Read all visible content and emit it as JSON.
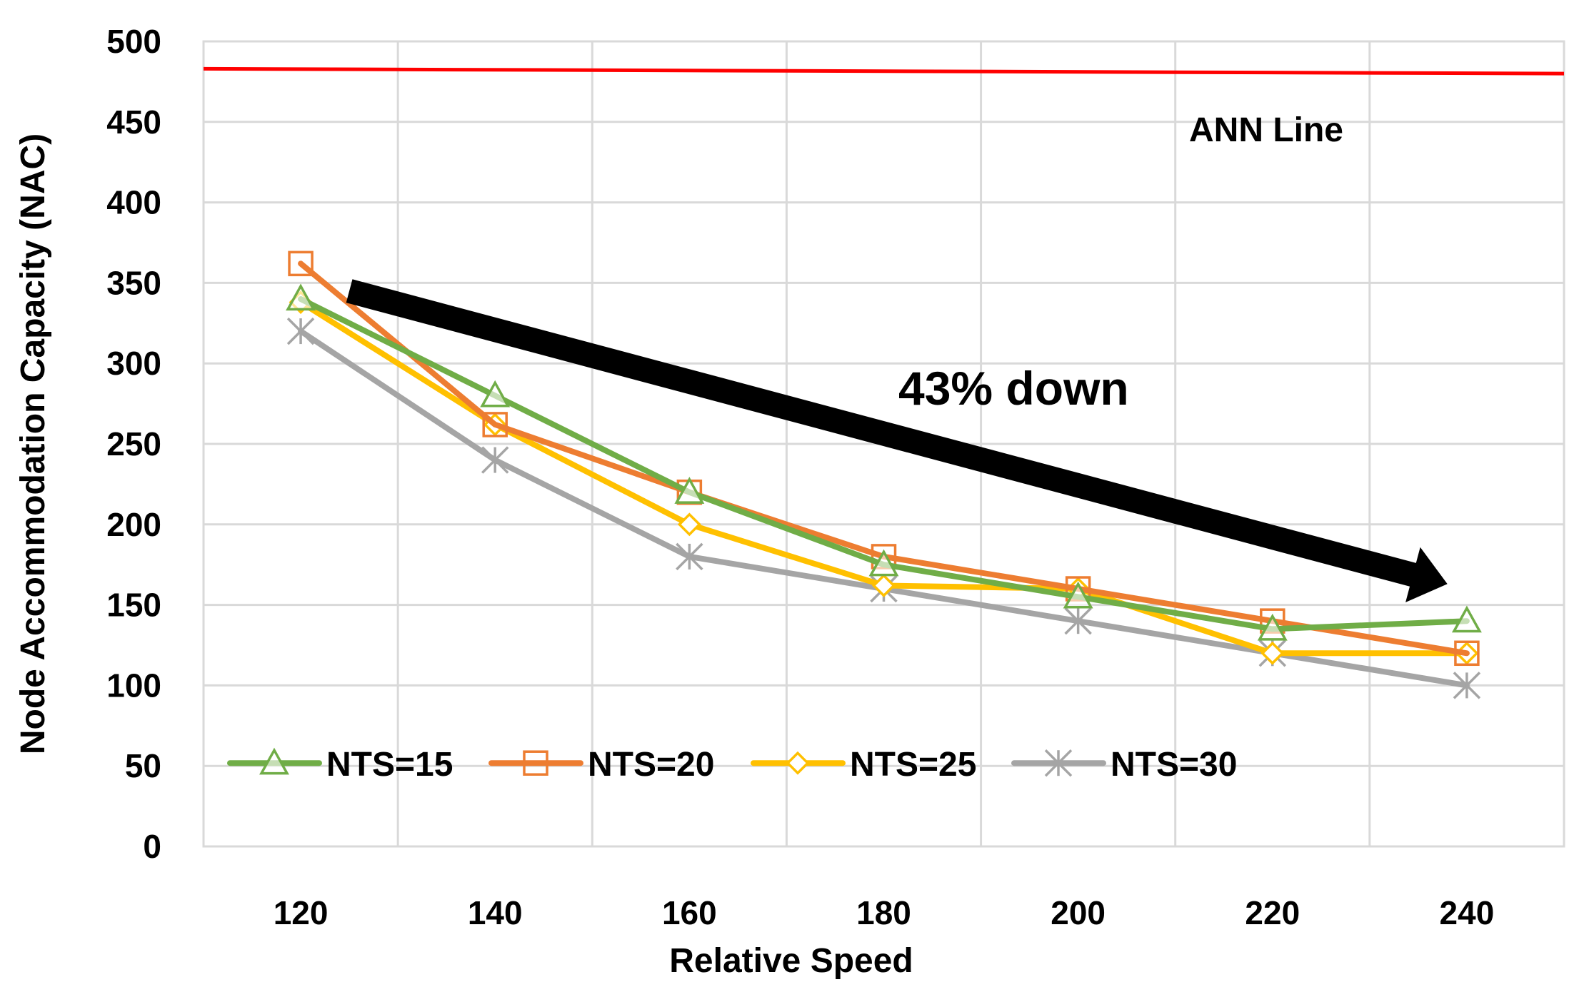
{
  "chart_data": {
    "type": "line",
    "title": "",
    "xlabel": "Relative Speed",
    "ylabel": "Node Accommodation Capacity (NAC)",
    "x": [
      120,
      140,
      160,
      180,
      200,
      220,
      240
    ],
    "x_tick_labels": [
      "120",
      "140",
      "160",
      "180",
      "200",
      "220",
      "240"
    ],
    "ylim": [
      0,
      500
    ],
    "y_ticks": [
      0,
      50,
      100,
      150,
      200,
      250,
      300,
      350,
      400,
      450,
      500
    ],
    "y_tick_labels": [
      "0",
      "50",
      "100",
      "150",
      "200",
      "250",
      "300",
      "350",
      "400",
      "450",
      "500"
    ],
    "grid": true,
    "legend_position": "bottom-left",
    "series": [
      {
        "name": "NTS=15",
        "color": "#70AD47",
        "marker": "triangle",
        "values": [
          340,
          280,
          220,
          175,
          155,
          135,
          140
        ]
      },
      {
        "name": "NTS=20",
        "color": "#ED7D31",
        "marker": "square",
        "values": [
          362,
          262,
          220,
          180,
          160,
          140,
          120
        ]
      },
      {
        "name": "NTS=25",
        "color": "#FFC000",
        "marker": "diamond",
        "values": [
          338,
          262,
          200,
          162,
          160,
          120,
          120
        ]
      },
      {
        "name": "NTS=30",
        "color": "#A5A5A5",
        "marker": "asterisk",
        "values": [
          320,
          240,
          180,
          160,
          140,
          120,
          100
        ]
      }
    ],
    "reference_line": {
      "label": "ANN Line",
      "color": "#FF0000",
      "values": [
        483,
        480
      ]
    },
    "annotations": [
      {
        "text": "43% down",
        "arrow_from": [
          125,
          345
        ],
        "arrow_to": [
          238,
          163
        ]
      }
    ]
  }
}
